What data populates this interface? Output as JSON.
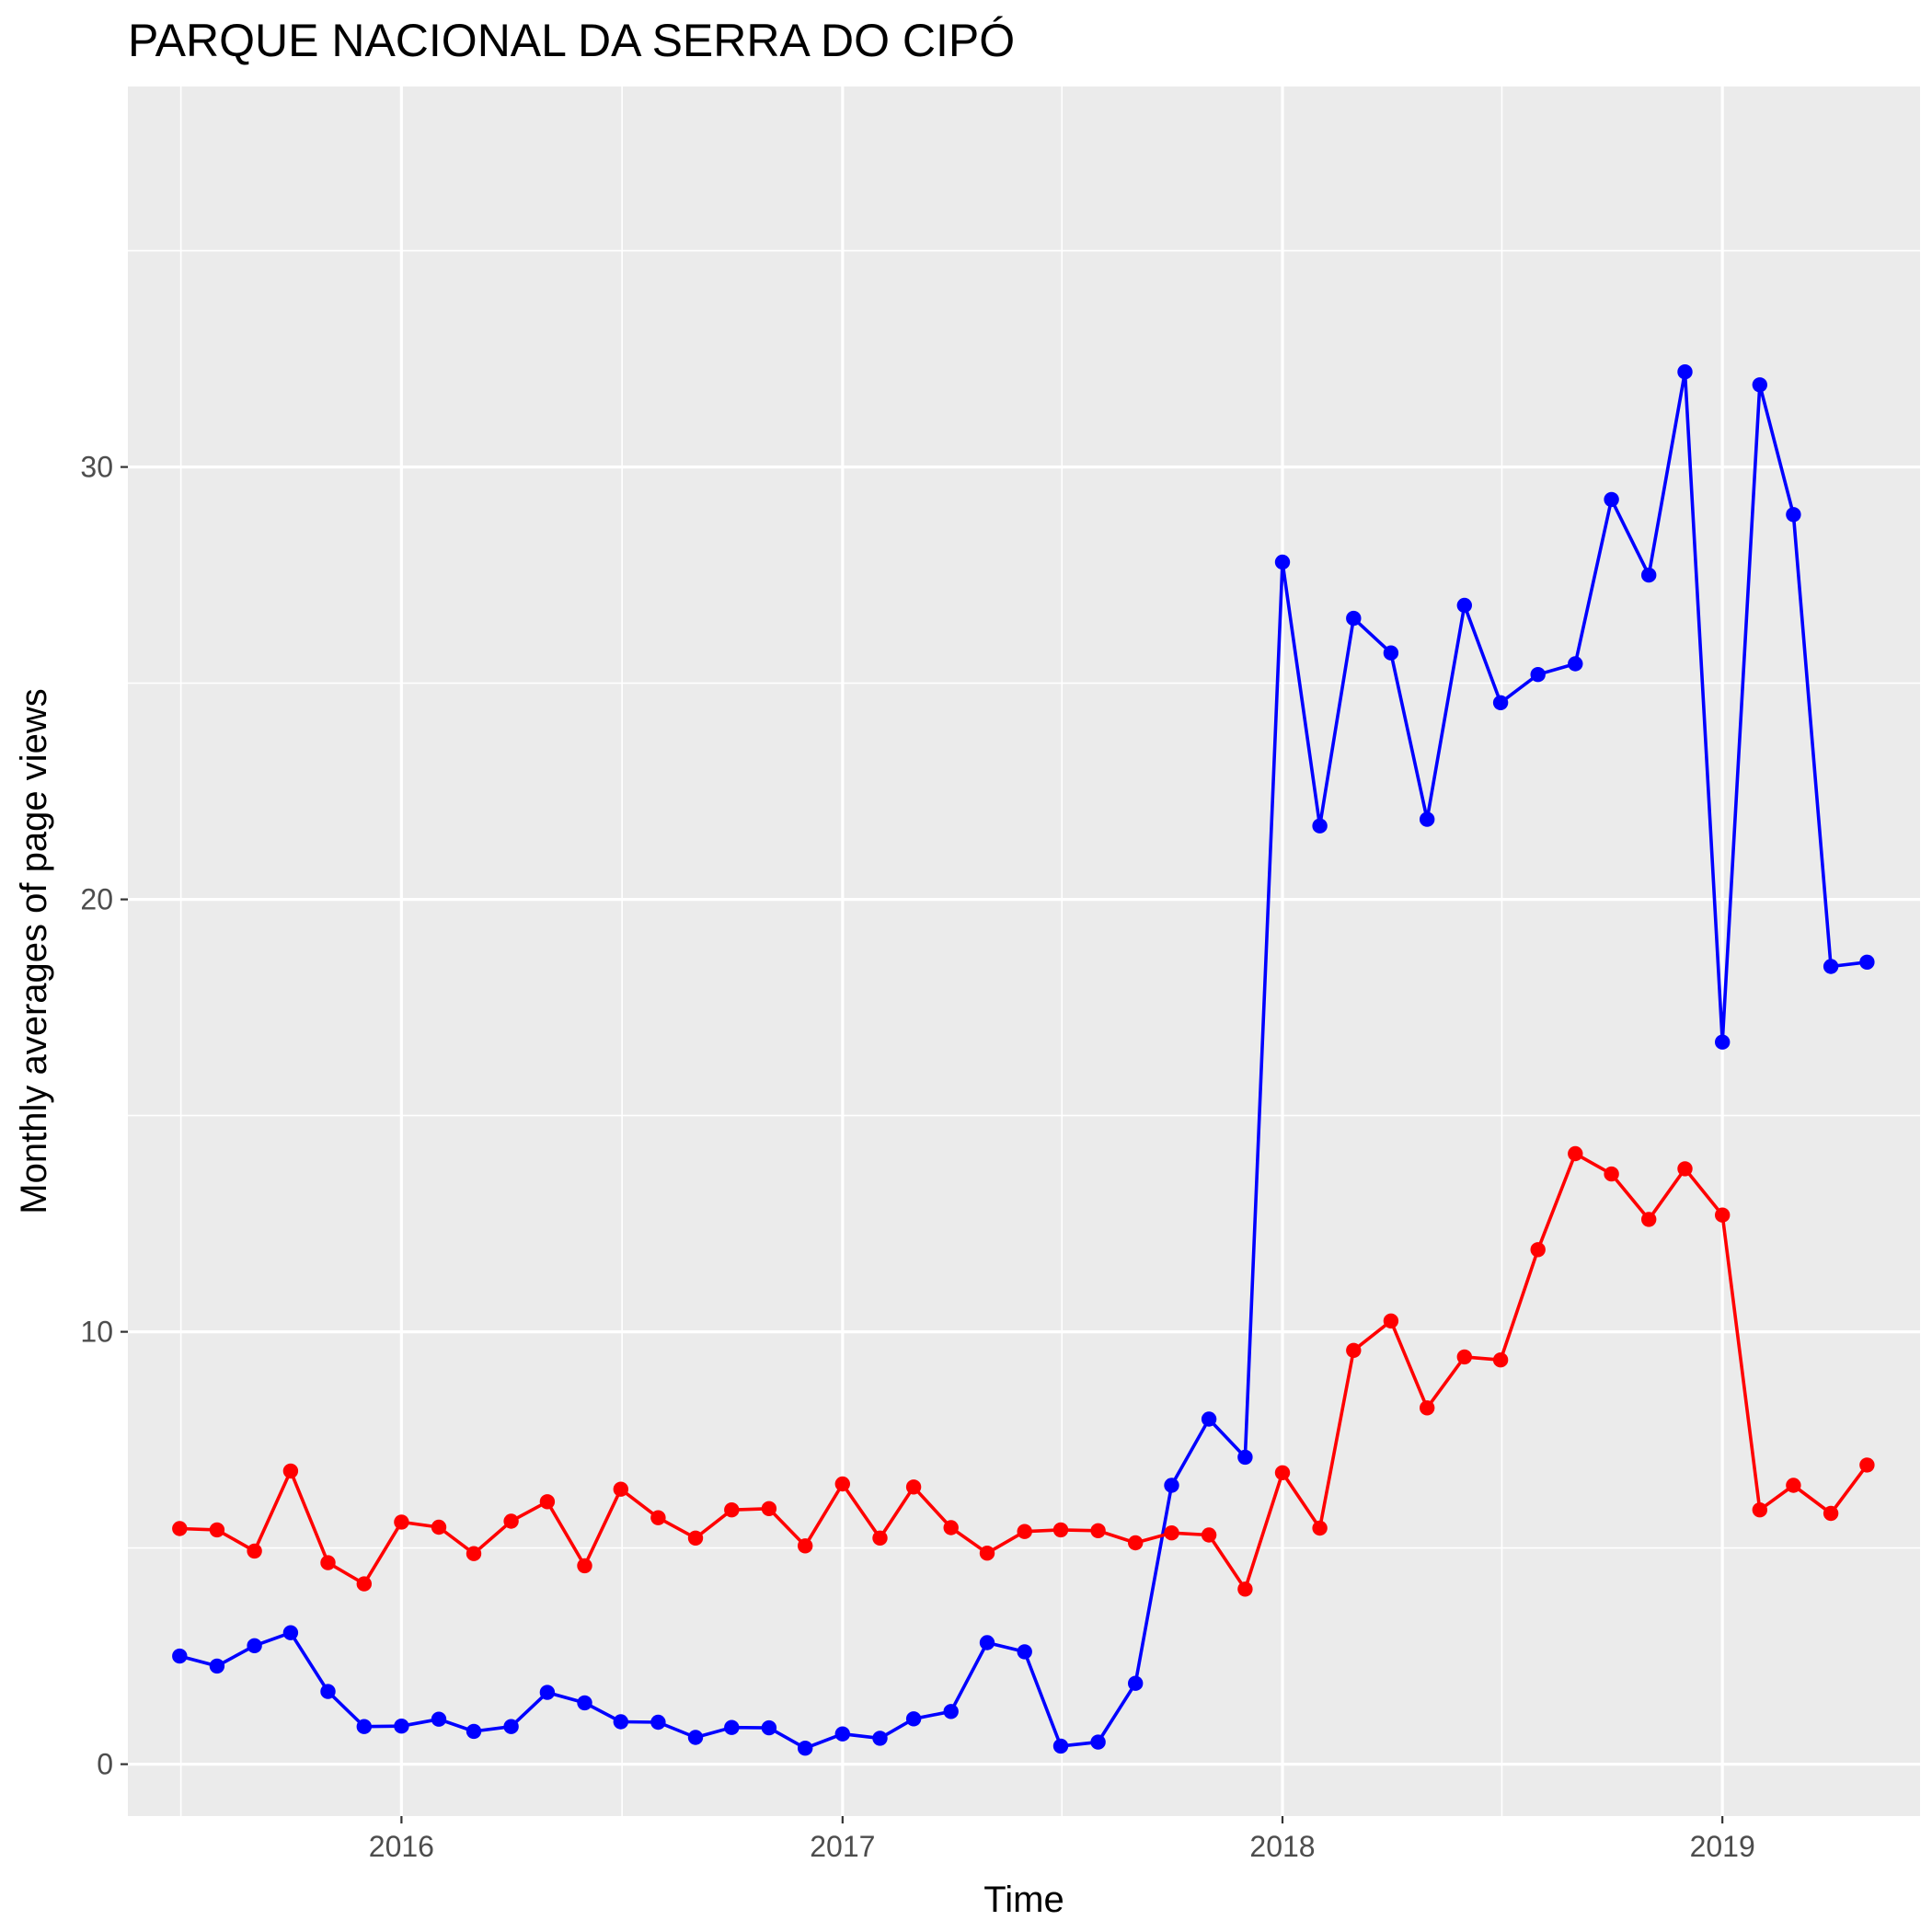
{
  "chart_data": {
    "type": "line",
    "title": "PARQUE NACIONAL DA SERRA DO CIPÓ",
    "xlabel": "Time",
    "ylabel": "Monthly averages of page views",
    "x_ticks": [
      "2016",
      "2017",
      "2018",
      "2019"
    ],
    "y_ticks": [
      "0",
      "10",
      "20",
      "30"
    ],
    "xlim": [
      "2015-05-19",
      "2019-06-14"
    ],
    "ylim": [
      -1.2,
      38.8
    ],
    "grid": true,
    "legend": "none",
    "x": [
      "2015-07",
      "2015-08",
      "2015-09",
      "2015-10",
      "2015-11",
      "2015-12",
      "2016-01",
      "2016-02",
      "2016-03",
      "2016-04",
      "2016-05",
      "2016-06",
      "2016-07",
      "2016-08",
      "2016-09",
      "2016-10",
      "2016-11",
      "2016-12",
      "2017-01",
      "2017-02",
      "2017-03",
      "2017-04",
      "2017-05",
      "2017-06",
      "2017-07",
      "2017-08",
      "2017-09",
      "2017-10",
      "2017-11",
      "2017-12",
      "2018-01",
      "2018-02",
      "2018-03",
      "2018-04",
      "2018-05",
      "2018-06",
      "2018-07",
      "2018-08",
      "2018-09",
      "2018-10",
      "2018-11",
      "2018-12",
      "2019-01",
      "2019-02",
      "2019-03",
      "2019-04",
      "2019-05"
    ],
    "series": [
      {
        "color": "#0000ff",
        "values": [
          2.5,
          2.27,
          2.74,
          3.04,
          1.68,
          0.87,
          0.88,
          1.04,
          0.76,
          0.87,
          1.66,
          1.42,
          0.98,
          0.97,
          0.62,
          0.85,
          0.84,
          0.37,
          0.7,
          0.6,
          1.05,
          1.22,
          2.81,
          2.6,
          0.42,
          0.51,
          1.87,
          6.45,
          7.98,
          7.1,
          27.8,
          21.7,
          26.5,
          25.7,
          21.85,
          26.8,
          24.55,
          25.2,
          25.45,
          29.25,
          27.5,
          32.2,
          16.7,
          31.9,
          28.9,
          18.45,
          18.55
        ]
      },
      {
        "color": "#ff0000",
        "values": [
          5.45,
          5.42,
          4.93,
          6.78,
          4.66,
          4.17,
          5.6,
          5.48,
          4.87,
          5.62,
          6.07,
          4.59,
          6.36,
          5.7,
          5.23,
          5.88,
          5.91,
          5.05,
          6.48,
          5.23,
          6.41,
          5.47,
          4.88,
          5.38,
          5.42,
          5.4,
          5.12,
          5.35,
          5.3,
          4.05,
          6.74,
          5.46,
          9.57,
          10.25,
          8.24,
          9.42,
          9.35,
          11.9,
          14.12,
          13.65,
          12.6,
          13.77,
          12.7,
          5.88,
          6.45,
          5.8,
          6.92
        ]
      }
    ]
  }
}
